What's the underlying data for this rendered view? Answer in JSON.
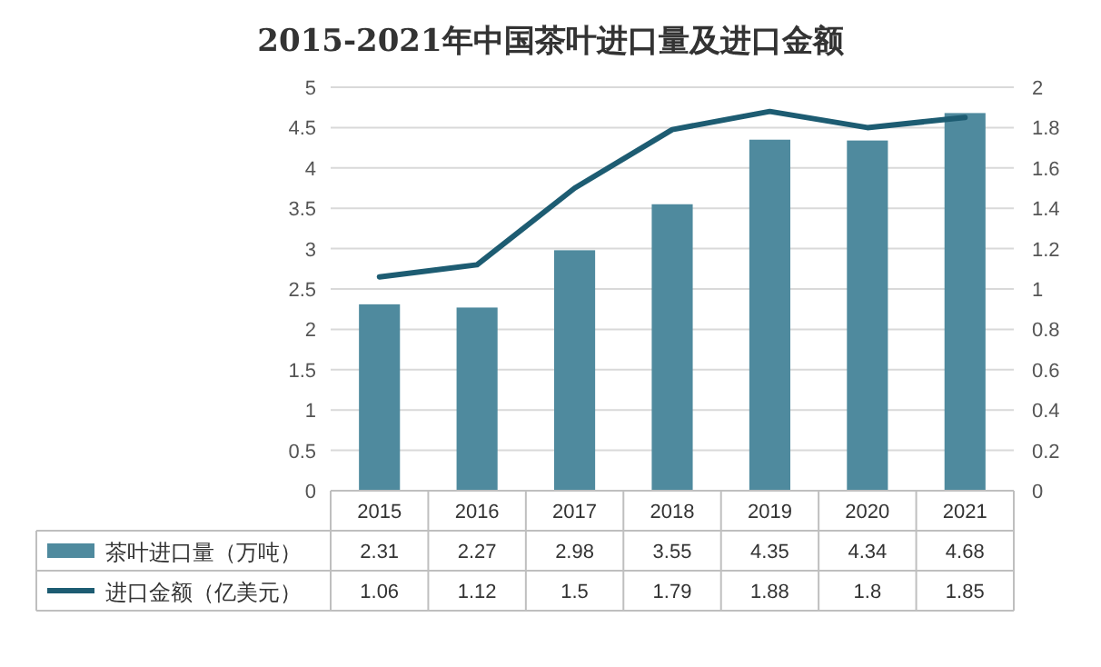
{
  "chart_data": {
    "type": "bar",
    "title": "2015-2021年中国茶叶进口量及进口金额",
    "categories": [
      "2015",
      "2016",
      "2017",
      "2018",
      "2019",
      "2020",
      "2021"
    ],
    "series": [
      {
        "name": "茶叶进口量（万吨）",
        "color": "#4f8a9e",
        "values": [
          2.31,
          2.27,
          2.98,
          3.55,
          4.35,
          4.34,
          4.68
        ]
      },
      {
        "name": "进口金额（亿美元）",
        "type": "line",
        "axis": "y2",
        "color": "#1d5c72",
        "values": [
          1.06,
          1.12,
          1.5,
          1.79,
          1.88,
          1.8,
          1.85
        ]
      }
    ],
    "ylim": [
      0,
      5
    ],
    "yticks": [
      0,
      0.5,
      1,
      1.5,
      2,
      2.5,
      3,
      3.5,
      4,
      4.5,
      5
    ],
    "y2lim": [
      0,
      2
    ],
    "y2ticks": [
      0,
      0.2,
      0.4,
      0.6,
      0.8,
      1,
      1.2,
      1.4,
      1.6,
      1.8,
      2
    ],
    "grid": "y",
    "legend": "bottom",
    "data_labels": true
  }
}
